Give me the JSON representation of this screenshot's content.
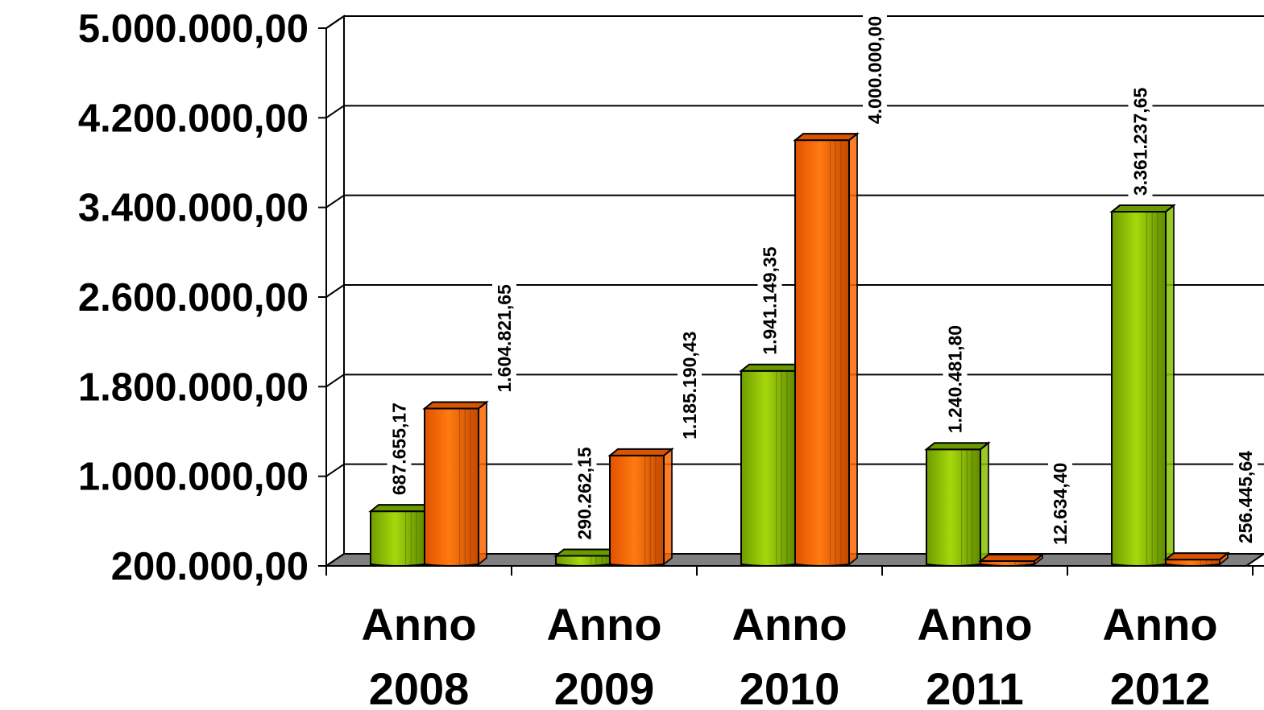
{
  "chart_data": {
    "type": "bar",
    "style": "3d-cylinder",
    "title": "",
    "categories": [
      "Anno 2008",
      "Anno 2009",
      "Anno 2010",
      "Anno 2011",
      "Anno 2012"
    ],
    "category_lines": [
      [
        "Anno",
        "2008"
      ],
      [
        "Anno",
        "2009"
      ],
      [
        "Anno",
        "2010"
      ],
      [
        "Anno",
        "2011"
      ],
      [
        "Anno",
        "2012"
      ]
    ],
    "series": [
      {
        "color": "#88c000",
        "values": [
          687655.17,
          290262.15,
          1941149.35,
          1240481.8,
          3361237.65
        ],
        "labels": [
          "687.655,17",
          "290.262,15",
          "1.941.149,35",
          "1.240.481,80",
          "3.361.237,65"
        ]
      },
      {
        "color": "#ff6600",
        "values": [
          1604821.65,
          1185190.43,
          4000000.0,
          12634.4,
          256445.64
        ],
        "labels": [
          "1.604.821,65",
          "1.185.190,43",
          "4.000.000,00",
          "12.634,40",
          "256.445,64"
        ]
      }
    ],
    "y_ticks": [
      {
        "value": 200000,
        "label": "200.000,00"
      },
      {
        "value": 1000000,
        "label": "1.000.000,00"
      },
      {
        "value": 1800000,
        "label": "1.800.000,00"
      },
      {
        "value": 2600000,
        "label": "2.600.000,00"
      },
      {
        "value": 3400000,
        "label": "3.400.000,00"
      },
      {
        "value": 4200000,
        "label": "4.200.000,00"
      },
      {
        "value": 5000000,
        "label": "5.000.000,00"
      }
    ],
    "ylim": [
      200000,
      5000000
    ],
    "grid": true,
    "legend": "none"
  }
}
